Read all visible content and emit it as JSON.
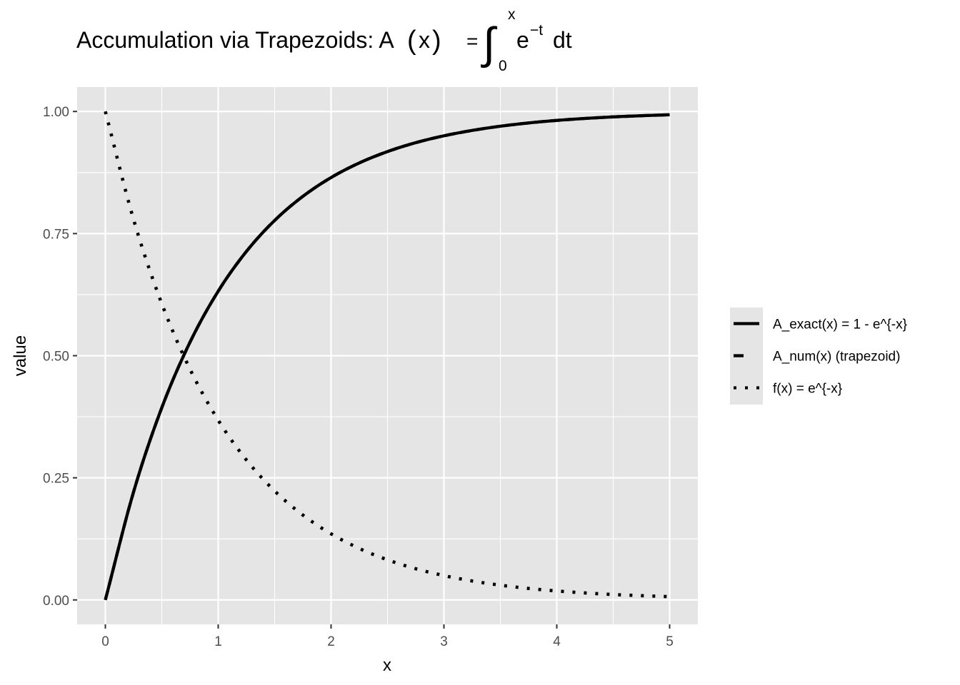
{
  "chart_data": {
    "type": "line",
    "title": {
      "prefix": "Accumulation via Trapezoids: A",
      "paren_open": "(",
      "arg": "x",
      "paren_close": ")",
      "equals": "=",
      "integral": "∫",
      "upper": "x",
      "lower": "0",
      "base": "e",
      "exponent": "−t",
      "differential": "dt"
    },
    "xlabel": "x",
    "ylabel": "value",
    "xlim": [
      -0.25,
      5.25
    ],
    "ylim": [
      -0.05,
      1.05
    ],
    "x_ticks": [
      0,
      1,
      2,
      3,
      4,
      5
    ],
    "x_tick_labels": [
      "0",
      "1",
      "2",
      "3",
      "4",
      "5"
    ],
    "y_ticks": [
      0,
      0.25,
      0.5,
      0.75,
      1.0
    ],
    "y_tick_labels": [
      "0.00",
      "0.25",
      "0.50",
      "0.75",
      "1.00"
    ],
    "grid": true,
    "legend_position": "right",
    "x": [
      0,
      0.25,
      0.5,
      0.75,
      1.0,
      1.25,
      1.5,
      1.75,
      2.0,
      2.25,
      2.5,
      2.75,
      3.0,
      3.25,
      3.5,
      3.75,
      4.0,
      4.25,
      4.5,
      4.75,
      5.0
    ],
    "series": [
      {
        "name": "A_exact(x) = 1 - e^{-x}",
        "linetype": "solid",
        "values": [
          0,
          0.2212,
          0.3935,
          0.5276,
          0.6321,
          0.7135,
          0.7769,
          0.8262,
          0.8647,
          0.8946,
          0.9179,
          0.9361,
          0.9502,
          0.9612,
          0.9698,
          0.9765,
          0.9817,
          0.9857,
          0.9889,
          0.9913,
          0.9933
        ]
      },
      {
        "name": "A_num(x) (trapezoid)",
        "linetype": "dashed",
        "values": [
          0,
          0.2212,
          0.3935,
          0.5276,
          0.6321,
          0.7135,
          0.7769,
          0.8262,
          0.8647,
          0.8946,
          0.9179,
          0.9361,
          0.9502,
          0.9612,
          0.9698,
          0.9765,
          0.9817,
          0.9857,
          0.9889,
          0.9913,
          0.9933
        ]
      },
      {
        "name": "f(x) = e^{-x}",
        "linetype": "dotted",
        "values": [
          1.0,
          0.7788,
          0.6065,
          0.4724,
          0.3679,
          0.2865,
          0.2231,
          0.1738,
          0.1353,
          0.1054,
          0.0821,
          0.0639,
          0.0498,
          0.0388,
          0.0302,
          0.0235,
          0.0183,
          0.0143,
          0.0111,
          0.0087,
          0.0067
        ]
      }
    ],
    "colors": {
      "panel_background": "#e5e5e5",
      "grid": "#ffffff",
      "line": "#000000",
      "tick_text": "#4d4d4d",
      "axis_tick": "#333333",
      "legend_key_background": "#e5e5e5"
    }
  }
}
